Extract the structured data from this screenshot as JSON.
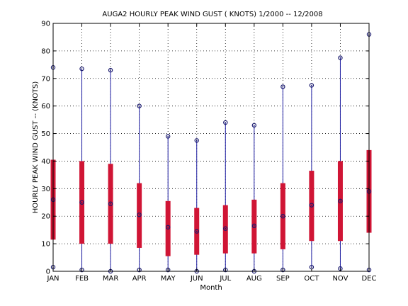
{
  "chart_data": {
    "type": "box",
    "title": "AUGA2  HOURLY PEAK WIND GUST ( KNOTS) 1/2000 -- 12/2008",
    "xlabel": "Month",
    "ylabel": "HOURLY PEAK WIND GUST --  (KNOTS)",
    "ylim": [
      0,
      90
    ],
    "yticks": [
      0,
      10,
      20,
      30,
      40,
      50,
      60,
      70,
      80,
      90
    ],
    "grid": true,
    "categories": [
      "JAN",
      "FEB",
      "MAR",
      "APR",
      "MAY",
      "JUN",
      "JUL",
      "AUG",
      "SEP",
      "OCT",
      "NOV",
      "DEC"
    ],
    "series": [
      {
        "min": 1.5,
        "q1": 11.5,
        "median": 26,
        "q3": 40.5,
        "max": 74,
        "mean": 26
      },
      {
        "min": 0.5,
        "q1": 10,
        "median": 25,
        "q3": 40,
        "max": 73.5,
        "mean": 25
      },
      {
        "min": 0,
        "q1": 10,
        "median": 24.5,
        "q3": 39,
        "max": 73,
        "mean": 24.5
      },
      {
        "min": 0.5,
        "q1": 8.5,
        "median": 20.5,
        "q3": 32,
        "max": 60,
        "mean": 20.5
      },
      {
        "min": 0.5,
        "q1": 5.5,
        "median": 16,
        "q3": 25.5,
        "max": 49,
        "mean": 16
      },
      {
        "min": 0,
        "q1": 6,
        "median": 14.5,
        "q3": 23,
        "max": 47.5,
        "mean": 14.5
      },
      {
        "min": 0.5,
        "q1": 6.5,
        "median": 15.5,
        "q3": 24,
        "max": 54,
        "mean": 15.5
      },
      {
        "min": 0,
        "q1": 6.5,
        "median": 16.5,
        "q3": 26,
        "max": 53,
        "mean": 16.5
      },
      {
        "min": 0.5,
        "q1": 8,
        "median": 20,
        "q3": 32,
        "max": 67,
        "mean": 20
      },
      {
        "min": 1.5,
        "q1": 11,
        "median": 24,
        "q3": 36.5,
        "max": 67.5,
        "mean": 24
      },
      {
        "min": 1,
        "q1": 11,
        "median": 25.5,
        "q3": 40,
        "max": 77.5,
        "mean": 25.5
      },
      {
        "min": 0.5,
        "q1": 14,
        "median": 29,
        "q3": 44,
        "max": 86,
        "mean": 29
      }
    ],
    "colors": {
      "whisker": "#1a1aa0",
      "box": "#d01535",
      "marker": "#1a1a6e",
      "grid": "#000000"
    }
  }
}
